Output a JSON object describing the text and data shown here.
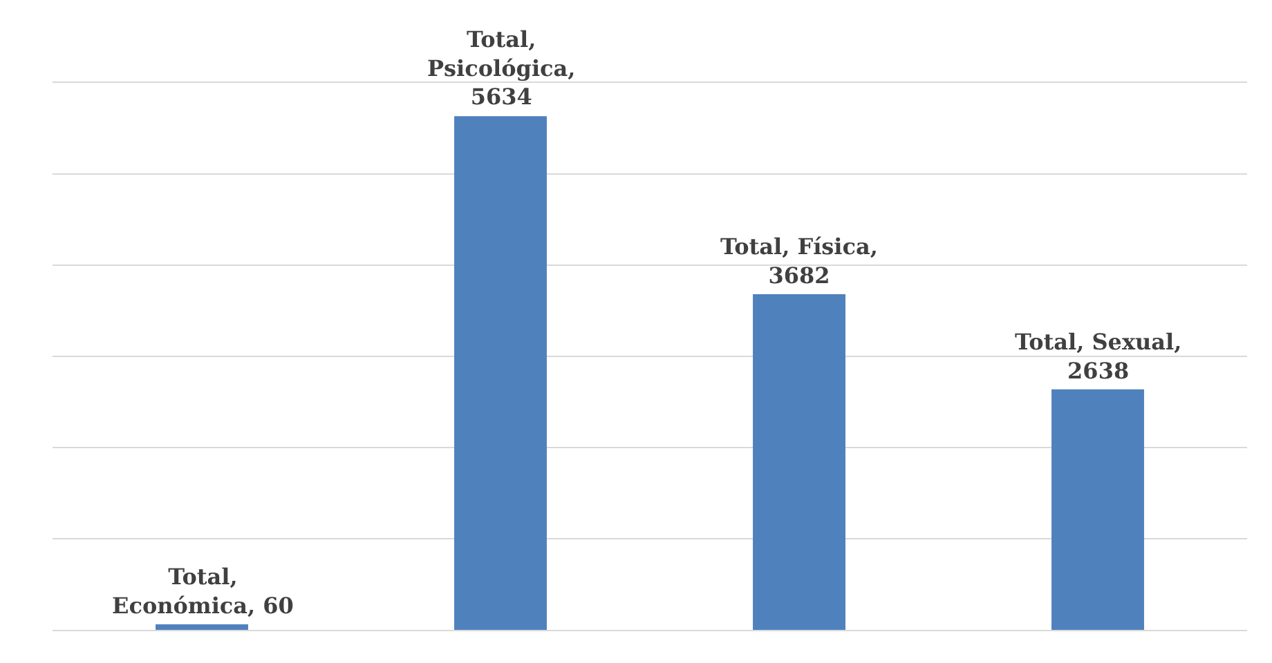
{
  "chart_data": {
    "type": "bar",
    "categories": [
      null,
      null,
      null,
      null
    ],
    "series": [
      {
        "color": "#4f81bd",
        "values": [
          60,
          5634,
          3682,
          2638
        ],
        "value_labels": [
          "Total, Económica, 60",
          "Total, Psicológica, 5634",
          "Total, Física, 3682",
          "Total, Sexual, 2638"
        ]
      }
    ],
    "ylim": [
      0,
      6000
    ],
    "yticks": [
      {
        "value": 0,
        "label": null
      },
      {
        "value": 1000,
        "label": null
      },
      {
        "value": 2000,
        "label": null
      },
      {
        "value": 3000,
        "label": null
      },
      {
        "value": 4000,
        "label": null
      },
      {
        "value": 5000,
        "label": null
      },
      {
        "value": 6000,
        "label": null
      }
    ],
    "grid": "y"
  }
}
